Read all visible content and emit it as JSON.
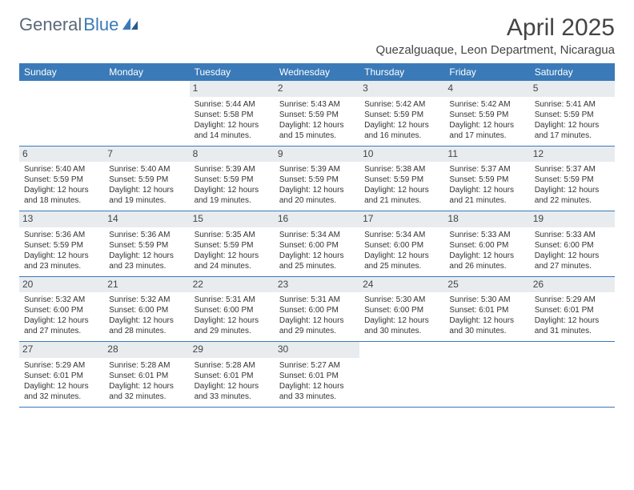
{
  "logo": {
    "part1": "General",
    "part2": "Blue"
  },
  "title": "April 2025",
  "location": "Quezalguaque, Leon Department, Nicaragua",
  "colors": {
    "header_bg": "#3a7ab8",
    "header_text": "#ffffff",
    "daynum_bg": "#e8ecef",
    "border": "#3a7ab8",
    "logo_gray": "#5a6a78",
    "logo_blue": "#3a7ab8",
    "page_bg": "#ffffff"
  },
  "day_names": [
    "Sunday",
    "Monday",
    "Tuesday",
    "Wednesday",
    "Thursday",
    "Friday",
    "Saturday"
  ],
  "weeks": [
    [
      {
        "day": "",
        "empty": true
      },
      {
        "day": "",
        "empty": true
      },
      {
        "day": "1",
        "sunrise": "Sunrise: 5:44 AM",
        "sunset": "Sunset: 5:58 PM",
        "daylight": "Daylight: 12 hours and 14 minutes."
      },
      {
        "day": "2",
        "sunrise": "Sunrise: 5:43 AM",
        "sunset": "Sunset: 5:59 PM",
        "daylight": "Daylight: 12 hours and 15 minutes."
      },
      {
        "day": "3",
        "sunrise": "Sunrise: 5:42 AM",
        "sunset": "Sunset: 5:59 PM",
        "daylight": "Daylight: 12 hours and 16 minutes."
      },
      {
        "day": "4",
        "sunrise": "Sunrise: 5:42 AM",
        "sunset": "Sunset: 5:59 PM",
        "daylight": "Daylight: 12 hours and 17 minutes."
      },
      {
        "day": "5",
        "sunrise": "Sunrise: 5:41 AM",
        "sunset": "Sunset: 5:59 PM",
        "daylight": "Daylight: 12 hours and 17 minutes."
      }
    ],
    [
      {
        "day": "6",
        "sunrise": "Sunrise: 5:40 AM",
        "sunset": "Sunset: 5:59 PM",
        "daylight": "Daylight: 12 hours and 18 minutes."
      },
      {
        "day": "7",
        "sunrise": "Sunrise: 5:40 AM",
        "sunset": "Sunset: 5:59 PM",
        "daylight": "Daylight: 12 hours and 19 minutes."
      },
      {
        "day": "8",
        "sunrise": "Sunrise: 5:39 AM",
        "sunset": "Sunset: 5:59 PM",
        "daylight": "Daylight: 12 hours and 19 minutes."
      },
      {
        "day": "9",
        "sunrise": "Sunrise: 5:39 AM",
        "sunset": "Sunset: 5:59 PM",
        "daylight": "Daylight: 12 hours and 20 minutes."
      },
      {
        "day": "10",
        "sunrise": "Sunrise: 5:38 AM",
        "sunset": "Sunset: 5:59 PM",
        "daylight": "Daylight: 12 hours and 21 minutes."
      },
      {
        "day": "11",
        "sunrise": "Sunrise: 5:37 AM",
        "sunset": "Sunset: 5:59 PM",
        "daylight": "Daylight: 12 hours and 21 minutes."
      },
      {
        "day": "12",
        "sunrise": "Sunrise: 5:37 AM",
        "sunset": "Sunset: 5:59 PM",
        "daylight": "Daylight: 12 hours and 22 minutes."
      }
    ],
    [
      {
        "day": "13",
        "sunrise": "Sunrise: 5:36 AM",
        "sunset": "Sunset: 5:59 PM",
        "daylight": "Daylight: 12 hours and 23 minutes."
      },
      {
        "day": "14",
        "sunrise": "Sunrise: 5:36 AM",
        "sunset": "Sunset: 5:59 PM",
        "daylight": "Daylight: 12 hours and 23 minutes."
      },
      {
        "day": "15",
        "sunrise": "Sunrise: 5:35 AM",
        "sunset": "Sunset: 5:59 PM",
        "daylight": "Daylight: 12 hours and 24 minutes."
      },
      {
        "day": "16",
        "sunrise": "Sunrise: 5:34 AM",
        "sunset": "Sunset: 6:00 PM",
        "daylight": "Daylight: 12 hours and 25 minutes."
      },
      {
        "day": "17",
        "sunrise": "Sunrise: 5:34 AM",
        "sunset": "Sunset: 6:00 PM",
        "daylight": "Daylight: 12 hours and 25 minutes."
      },
      {
        "day": "18",
        "sunrise": "Sunrise: 5:33 AM",
        "sunset": "Sunset: 6:00 PM",
        "daylight": "Daylight: 12 hours and 26 minutes."
      },
      {
        "day": "19",
        "sunrise": "Sunrise: 5:33 AM",
        "sunset": "Sunset: 6:00 PM",
        "daylight": "Daylight: 12 hours and 27 minutes."
      }
    ],
    [
      {
        "day": "20",
        "sunrise": "Sunrise: 5:32 AM",
        "sunset": "Sunset: 6:00 PM",
        "daylight": "Daylight: 12 hours and 27 minutes."
      },
      {
        "day": "21",
        "sunrise": "Sunrise: 5:32 AM",
        "sunset": "Sunset: 6:00 PM",
        "daylight": "Daylight: 12 hours and 28 minutes."
      },
      {
        "day": "22",
        "sunrise": "Sunrise: 5:31 AM",
        "sunset": "Sunset: 6:00 PM",
        "daylight": "Daylight: 12 hours and 29 minutes."
      },
      {
        "day": "23",
        "sunrise": "Sunrise: 5:31 AM",
        "sunset": "Sunset: 6:00 PM",
        "daylight": "Daylight: 12 hours and 29 minutes."
      },
      {
        "day": "24",
        "sunrise": "Sunrise: 5:30 AM",
        "sunset": "Sunset: 6:00 PM",
        "daylight": "Daylight: 12 hours and 30 minutes."
      },
      {
        "day": "25",
        "sunrise": "Sunrise: 5:30 AM",
        "sunset": "Sunset: 6:01 PM",
        "daylight": "Daylight: 12 hours and 30 minutes."
      },
      {
        "day": "26",
        "sunrise": "Sunrise: 5:29 AM",
        "sunset": "Sunset: 6:01 PM",
        "daylight": "Daylight: 12 hours and 31 minutes."
      }
    ],
    [
      {
        "day": "27",
        "sunrise": "Sunrise: 5:29 AM",
        "sunset": "Sunset: 6:01 PM",
        "daylight": "Daylight: 12 hours and 32 minutes."
      },
      {
        "day": "28",
        "sunrise": "Sunrise: 5:28 AM",
        "sunset": "Sunset: 6:01 PM",
        "daylight": "Daylight: 12 hours and 32 minutes."
      },
      {
        "day": "29",
        "sunrise": "Sunrise: 5:28 AM",
        "sunset": "Sunset: 6:01 PM",
        "daylight": "Daylight: 12 hours and 33 minutes."
      },
      {
        "day": "30",
        "sunrise": "Sunrise: 5:27 AM",
        "sunset": "Sunset: 6:01 PM",
        "daylight": "Daylight: 12 hours and 33 minutes."
      },
      {
        "day": "",
        "empty": true
      },
      {
        "day": "",
        "empty": true
      },
      {
        "day": "",
        "empty": true
      }
    ]
  ]
}
